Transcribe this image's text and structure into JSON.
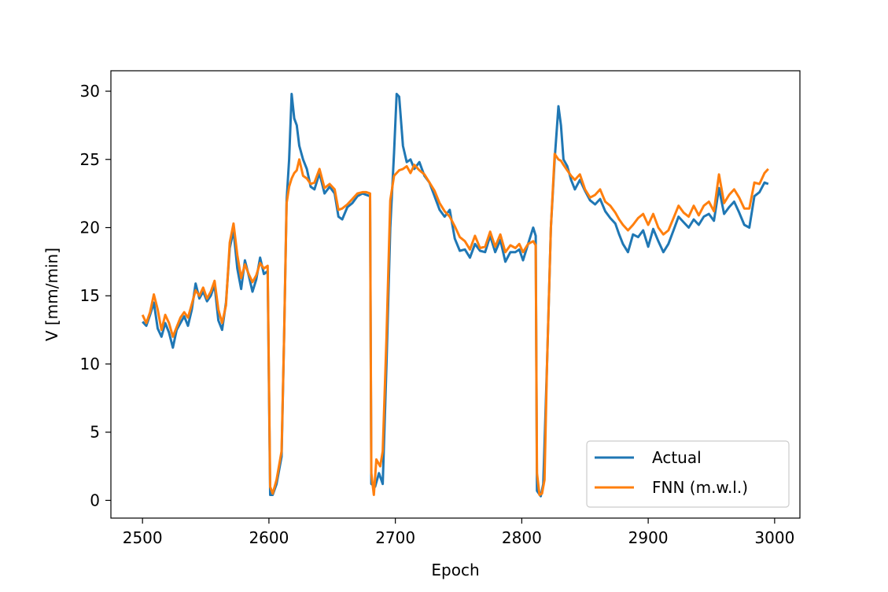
{
  "chart_data": {
    "type": "line",
    "title": "",
    "xlabel": "Epoch",
    "ylabel": "V [mm/min]",
    "xlim": [
      2475,
      3020
    ],
    "ylim": [
      -1.3,
      31.5
    ],
    "xticks": [
      2500,
      2600,
      2700,
      2800,
      2900,
      3000
    ],
    "yticks": [
      0,
      5,
      10,
      15,
      20,
      25,
      30
    ],
    "grid": false,
    "legend_position": "lower right",
    "series": [
      {
        "name": "Actual",
        "color": "#1f77b4",
        "points": [
          [
            2500,
            13.1
          ],
          [
            2503,
            12.8
          ],
          [
            2506,
            13.6
          ],
          [
            2509,
            14.5
          ],
          [
            2512,
            12.6
          ],
          [
            2515,
            12.0
          ],
          [
            2518,
            13.0
          ],
          [
            2521,
            12.3
          ],
          [
            2524,
            11.2
          ],
          [
            2527,
            12.5
          ],
          [
            2530,
            13.0
          ],
          [
            2533,
            13.5
          ],
          [
            2536,
            12.8
          ],
          [
            2539,
            14.0
          ],
          [
            2542,
            15.9
          ],
          [
            2545,
            14.8
          ],
          [
            2548,
            15.3
          ],
          [
            2551,
            14.6
          ],
          [
            2554,
            15.0
          ],
          [
            2557,
            15.8
          ],
          [
            2560,
            13.2
          ],
          [
            2563,
            12.5
          ],
          [
            2566,
            14.5
          ],
          [
            2569,
            18.5
          ],
          [
            2572,
            19.8
          ],
          [
            2575,
            17.0
          ],
          [
            2578,
            15.5
          ],
          [
            2581,
            17.6
          ],
          [
            2584,
            16.5
          ],
          [
            2587,
            15.3
          ],
          [
            2590,
            16.2
          ],
          [
            2593,
            17.8
          ],
          [
            2596,
            16.6
          ],
          [
            2599,
            16.8
          ],
          [
            2601,
            0.4
          ],
          [
            2603,
            0.4
          ],
          [
            2606,
            1.2
          ],
          [
            2610,
            3.2
          ],
          [
            2612,
            12.0
          ],
          [
            2614,
            22.0
          ],
          [
            2616,
            25.0
          ],
          [
            2618,
            29.8
          ],
          [
            2620,
            28.0
          ],
          [
            2622,
            27.5
          ],
          [
            2624,
            26.0
          ],
          [
            2627,
            25.0
          ],
          [
            2630,
            24.3
          ],
          [
            2633,
            23.0
          ],
          [
            2636,
            22.8
          ],
          [
            2640,
            24.0
          ],
          [
            2644,
            22.5
          ],
          [
            2648,
            23.0
          ],
          [
            2652,
            22.5
          ],
          [
            2655,
            20.8
          ],
          [
            2658,
            20.6
          ],
          [
            2662,
            21.5
          ],
          [
            2666,
            21.8
          ],
          [
            2670,
            22.3
          ],
          [
            2674,
            22.5
          ],
          [
            2677,
            22.4
          ],
          [
            2680,
            22.3
          ],
          [
            2681,
            1.2
          ],
          [
            2684,
            1.0
          ],
          [
            2687,
            2.0
          ],
          [
            2690,
            1.2
          ],
          [
            2693,
            10.0
          ],
          [
            2696,
            20.0
          ],
          [
            2699,
            25.5
          ],
          [
            2701,
            29.8
          ],
          [
            2703,
            29.6
          ],
          [
            2706,
            26.0
          ],
          [
            2709,
            24.8
          ],
          [
            2712,
            25.0
          ],
          [
            2715,
            24.3
          ],
          [
            2719,
            24.8
          ],
          [
            2723,
            23.8
          ],
          [
            2727,
            23.3
          ],
          [
            2731,
            22.3
          ],
          [
            2735,
            21.3
          ],
          [
            2739,
            20.8
          ],
          [
            2743,
            21.3
          ],
          [
            2747,
            19.2
          ],
          [
            2751,
            18.3
          ],
          [
            2755,
            18.4
          ],
          [
            2759,
            17.8
          ],
          [
            2763,
            18.8
          ],
          [
            2767,
            18.3
          ],
          [
            2771,
            18.2
          ],
          [
            2775,
            19.4
          ],
          [
            2779,
            18.2
          ],
          [
            2783,
            19.1
          ],
          [
            2787,
            17.5
          ],
          [
            2791,
            18.2
          ],
          [
            2795,
            18.2
          ],
          [
            2798,
            18.4
          ],
          [
            2801,
            17.6
          ],
          [
            2805,
            18.8
          ],
          [
            2809,
            20.0
          ],
          [
            2811,
            19.4
          ],
          [
            2812,
            0.7
          ],
          [
            2815,
            0.3
          ],
          [
            2817,
            1.2
          ],
          [
            2820,
            10.0
          ],
          [
            2823,
            20.0
          ],
          [
            2826,
            25.0
          ],
          [
            2829,
            28.9
          ],
          [
            2831,
            27.5
          ],
          [
            2833,
            25.0
          ],
          [
            2836,
            24.5
          ],
          [
            2839,
            23.5
          ],
          [
            2842,
            22.8
          ],
          [
            2846,
            23.5
          ],
          [
            2850,
            22.7
          ],
          [
            2854,
            22.0
          ],
          [
            2858,
            21.7
          ],
          [
            2862,
            22.1
          ],
          [
            2866,
            21.2
          ],
          [
            2870,
            20.7
          ],
          [
            2874,
            20.3
          ],
          [
            2877,
            19.5
          ],
          [
            2880,
            18.8
          ],
          [
            2884,
            18.2
          ],
          [
            2888,
            19.5
          ],
          [
            2892,
            19.3
          ],
          [
            2896,
            19.8
          ],
          [
            2900,
            18.6
          ],
          [
            2904,
            19.9
          ],
          [
            2908,
            19.0
          ],
          [
            2912,
            18.2
          ],
          [
            2916,
            18.8
          ],
          [
            2920,
            19.8
          ],
          [
            2924,
            20.8
          ],
          [
            2928,
            20.4
          ],
          [
            2932,
            20.0
          ],
          [
            2936,
            20.6
          ],
          [
            2940,
            20.2
          ],
          [
            2944,
            20.8
          ],
          [
            2948,
            21.0
          ],
          [
            2952,
            20.5
          ],
          [
            2956,
            22.9
          ],
          [
            2960,
            21.0
          ],
          [
            2964,
            21.5
          ],
          [
            2968,
            21.9
          ],
          [
            2972,
            21.1
          ],
          [
            2976,
            20.2
          ],
          [
            2980,
            20.0
          ],
          [
            2984,
            22.3
          ],
          [
            2988,
            22.6
          ],
          [
            2992,
            23.3
          ],
          [
            2995,
            23.2
          ]
        ]
      },
      {
        "name": "FNN (m.w.l.)",
        "color": "#ff7f0e",
        "points": [
          [
            2500,
            13.6
          ],
          [
            2503,
            13.0
          ],
          [
            2506,
            13.8
          ],
          [
            2509,
            15.1
          ],
          [
            2512,
            14.0
          ],
          [
            2515,
            12.5
          ],
          [
            2518,
            13.6
          ],
          [
            2521,
            13.0
          ],
          [
            2524,
            12.0
          ],
          [
            2527,
            12.7
          ],
          [
            2530,
            13.4
          ],
          [
            2533,
            13.8
          ],
          [
            2536,
            13.4
          ],
          [
            2539,
            14.4
          ],
          [
            2542,
            15.4
          ],
          [
            2545,
            15.0
          ],
          [
            2548,
            15.6
          ],
          [
            2551,
            14.8
          ],
          [
            2554,
            15.3
          ],
          [
            2557,
            16.1
          ],
          [
            2560,
            14.0
          ],
          [
            2563,
            13.0
          ],
          [
            2566,
            14.3
          ],
          [
            2569,
            18.9
          ],
          [
            2572,
            20.3
          ],
          [
            2575,
            18.0
          ],
          [
            2578,
            16.3
          ],
          [
            2581,
            17.3
          ],
          [
            2584,
            16.6
          ],
          [
            2587,
            16.0
          ],
          [
            2590,
            16.5
          ],
          [
            2593,
            17.4
          ],
          [
            2596,
            17.0
          ],
          [
            2599,
            17.2
          ],
          [
            2601,
            1.0
          ],
          [
            2603,
            0.5
          ],
          [
            2606,
            1.5
          ],
          [
            2610,
            3.6
          ],
          [
            2612,
            12.0
          ],
          [
            2614,
            21.8
          ],
          [
            2616,
            23.0
          ],
          [
            2618,
            23.6
          ],
          [
            2620,
            24.0
          ],
          [
            2622,
            24.2
          ],
          [
            2624,
            25.0
          ],
          [
            2627,
            23.8
          ],
          [
            2630,
            23.6
          ],
          [
            2633,
            23.2
          ],
          [
            2636,
            23.3
          ],
          [
            2640,
            24.3
          ],
          [
            2644,
            22.9
          ],
          [
            2648,
            23.2
          ],
          [
            2652,
            22.8
          ],
          [
            2655,
            21.3
          ],
          [
            2658,
            21.4
          ],
          [
            2662,
            21.7
          ],
          [
            2666,
            22.1
          ],
          [
            2670,
            22.5
          ],
          [
            2674,
            22.6
          ],
          [
            2677,
            22.6
          ],
          [
            2680,
            22.5
          ],
          [
            2681,
            2.0
          ],
          [
            2683,
            0.4
          ],
          [
            2685,
            3.0
          ],
          [
            2688,
            2.5
          ],
          [
            2690,
            3.6
          ],
          [
            2693,
            12.0
          ],
          [
            2696,
            22.0
          ],
          [
            2699,
            23.8
          ],
          [
            2703,
            24.2
          ],
          [
            2706,
            24.3
          ],
          [
            2709,
            24.5
          ],
          [
            2712,
            24.0
          ],
          [
            2715,
            24.6
          ],
          [
            2719,
            24.2
          ],
          [
            2723,
            23.9
          ],
          [
            2727,
            23.3
          ],
          [
            2731,
            22.7
          ],
          [
            2735,
            21.8
          ],
          [
            2739,
            21.2
          ],
          [
            2743,
            20.8
          ],
          [
            2747,
            20.1
          ],
          [
            2751,
            19.3
          ],
          [
            2755,
            19.0
          ],
          [
            2759,
            18.4
          ],
          [
            2763,
            19.4
          ],
          [
            2767,
            18.5
          ],
          [
            2771,
            18.6
          ],
          [
            2775,
            19.7
          ],
          [
            2779,
            18.6
          ],
          [
            2783,
            19.5
          ],
          [
            2787,
            18.2
          ],
          [
            2791,
            18.7
          ],
          [
            2795,
            18.5
          ],
          [
            2798,
            18.8
          ],
          [
            2801,
            18.2
          ],
          [
            2805,
            18.8
          ],
          [
            2809,
            19.0
          ],
          [
            2811,
            18.7
          ],
          [
            2812,
            2.0
          ],
          [
            2814,
            0.4
          ],
          [
            2816,
            0.5
          ],
          [
            2818,
            1.5
          ],
          [
            2820,
            10.0
          ],
          [
            2823,
            20.0
          ],
          [
            2826,
            25.4
          ],
          [
            2829,
            25.0
          ],
          [
            2831,
            24.9
          ],
          [
            2833,
            24.6
          ],
          [
            2836,
            24.2
          ],
          [
            2839,
            23.8
          ],
          [
            2842,
            23.5
          ],
          [
            2846,
            23.9
          ],
          [
            2850,
            22.8
          ],
          [
            2854,
            22.2
          ],
          [
            2858,
            22.4
          ],
          [
            2862,
            22.8
          ],
          [
            2866,
            21.9
          ],
          [
            2870,
            21.6
          ],
          [
            2874,
            21.1
          ],
          [
            2877,
            20.6
          ],
          [
            2880,
            20.2
          ],
          [
            2884,
            19.8
          ],
          [
            2888,
            20.2
          ],
          [
            2892,
            20.7
          ],
          [
            2896,
            21.0
          ],
          [
            2900,
            20.2
          ],
          [
            2904,
            21.0
          ],
          [
            2908,
            20.0
          ],
          [
            2912,
            19.5
          ],
          [
            2916,
            19.8
          ],
          [
            2920,
            20.7
          ],
          [
            2924,
            21.6
          ],
          [
            2928,
            21.1
          ],
          [
            2932,
            20.8
          ],
          [
            2936,
            21.6
          ],
          [
            2940,
            20.9
          ],
          [
            2944,
            21.6
          ],
          [
            2948,
            21.9
          ],
          [
            2952,
            21.2
          ],
          [
            2956,
            23.9
          ],
          [
            2960,
            21.8
          ],
          [
            2964,
            22.4
          ],
          [
            2968,
            22.8
          ],
          [
            2972,
            22.2
          ],
          [
            2976,
            21.4
          ],
          [
            2980,
            21.4
          ],
          [
            2984,
            23.3
          ],
          [
            2988,
            23.2
          ],
          [
            2992,
            24.0
          ],
          [
            2995,
            24.3
          ]
        ]
      }
    ]
  }
}
